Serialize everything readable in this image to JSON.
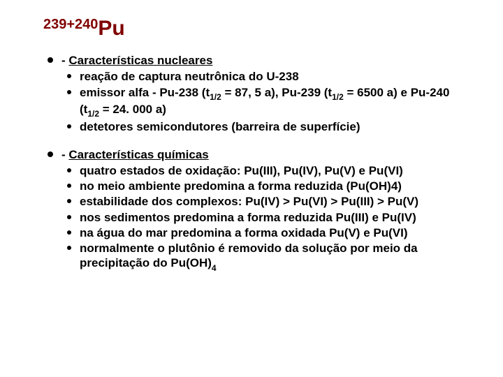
{
  "title_super": "239+240",
  "title_symbol": "Pu",
  "colors": {
    "title": "#800000",
    "text": "#000000",
    "background": "#ffffff"
  },
  "fonts": {
    "title_size_pt": 30,
    "title_super_size_pt": 20,
    "body_size_pt": 17,
    "subscript_size_pt": 12,
    "family": "Arial"
  },
  "sections": [
    {
      "prefix": "- ",
      "heading": "Características nucleares",
      "items": [
        {
          "html": " reação de captura neutrônica do U-238"
        },
        {
          "html": " emissor alfa - Pu-238 (t<span class=\"sub\">1/2</span> = 87, 5 a), Pu-239 (t<span class=\"sub\">1/2</span> = 6500 a) e Pu-240 (t<span class=\"sub\">1/2</span> = 24. 000 a)"
        },
        {
          "html": " detetores semicondutores (barreira de superfície)"
        }
      ]
    },
    {
      "prefix": "- ",
      "heading": "Características químicas",
      "items": [
        {
          "html": " quatro estados de oxidação: Pu(III), Pu(IV), Pu(V) e Pu(VI)"
        },
        {
          "html": " no meio ambiente predomina a forma reduzida (Pu(OH)4)"
        },
        {
          "html": " estabilidade dos complexos: Pu(IV) > Pu(VI) > Pu(III) > Pu(V)"
        },
        {
          "html": " nos sedimentos predomina a forma reduzida Pu(III) e Pu(IV)"
        },
        {
          "html": " na água do mar predomina a forma oxidada Pu(V) e Pu(VI)"
        },
        {
          "html": " normalmente o plutônio é removido da solução por meio da precipitação do Pu(OH)<span class=\"sub\">4</span>"
        }
      ]
    }
  ]
}
